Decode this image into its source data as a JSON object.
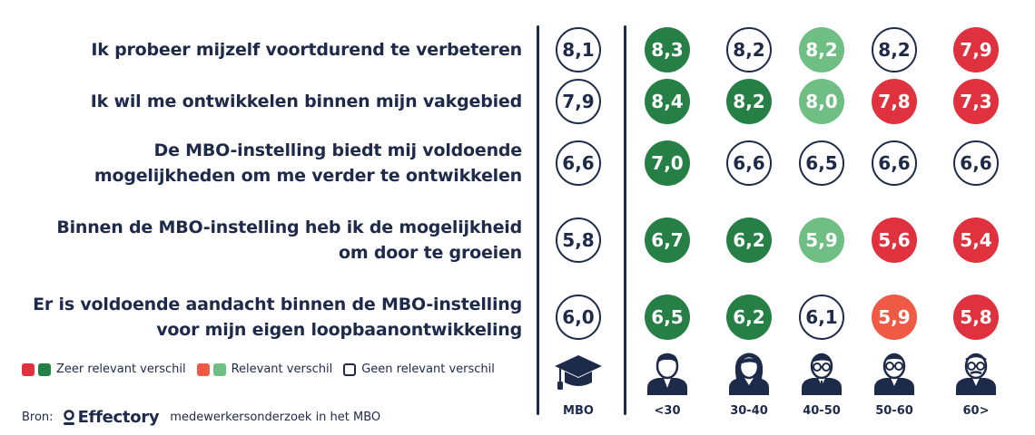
{
  "colors": {
    "zeer_red": "#e0313e",
    "zeer_green": "#268046",
    "rel_orange": "#ef5a45",
    "rel_green": "#6fbf85",
    "navy": "#1e2a4a"
  },
  "chart_data": {
    "type": "table",
    "columns": [
      "MBO",
      "<30",
      "30-40",
      "40-50",
      "50-60",
      "60>"
    ],
    "rows": [
      {
        "label_lines": [
          "Ik probeer mijzelf voortdurend te verbeteren"
        ],
        "values": [
          "8,1",
          "8,3",
          "8,2",
          "8,2",
          "8,2",
          "7,9"
        ],
        "status": [
          "none",
          "zeer-pos",
          "none",
          "rel-pos",
          "none",
          "zeer-neg"
        ]
      },
      {
        "label_lines": [
          "Ik wil me ontwikkelen binnen mijn vakgebied"
        ],
        "values": [
          "7,9",
          "8,4",
          "8,2",
          "8,0",
          "7,8",
          "7,3"
        ],
        "status": [
          "none",
          "zeer-pos",
          "zeer-pos",
          "rel-pos",
          "zeer-neg",
          "zeer-neg"
        ]
      },
      {
        "label_lines": [
          "De MBO-instelling biedt mij voldoende",
          "mogelijkheden om me verder te ontwikkelen"
        ],
        "values": [
          "6,6",
          "7,0",
          "6,6",
          "6,5",
          "6,6",
          "6,6"
        ],
        "status": [
          "none",
          "zeer-pos",
          "none",
          "none",
          "none",
          "none"
        ]
      },
      {
        "label_lines": [
          "Binnen de MBO-instelling heb ik de mogelijkheid",
          "om door te groeien"
        ],
        "values": [
          "5,8",
          "6,7",
          "6,2",
          "5,9",
          "5,6",
          "5,4"
        ],
        "status": [
          "none",
          "zeer-pos",
          "zeer-pos",
          "rel-pos",
          "zeer-neg",
          "zeer-neg"
        ]
      },
      {
        "label_lines": [
          "Er is voldoende aandacht binnen de MBO-instelling",
          "voor mijn eigen loopbaanontwikkeling"
        ],
        "values": [
          "6,0",
          "6,5",
          "6,2",
          "6,1",
          "5,9",
          "5,8"
        ],
        "status": [
          "none",
          "zeer-pos",
          "zeer-pos",
          "none",
          "rel-neg",
          "zeer-neg"
        ]
      }
    ]
  },
  "icons": [
    "graduation-cap-icon",
    "young-man-icon",
    "woman-icon",
    "man-glasses-icon",
    "older-man-glasses-icon",
    "senior-man-icon"
  ],
  "legend": {
    "zeer": "Zeer relevant verschil",
    "relevant": "Relevant verschil",
    "geen": "Geen relevant verschil"
  },
  "source": {
    "prefix": "Bron:",
    "brand": "Effectory",
    "text": "medewerkersonderzoek in het MBO"
  }
}
